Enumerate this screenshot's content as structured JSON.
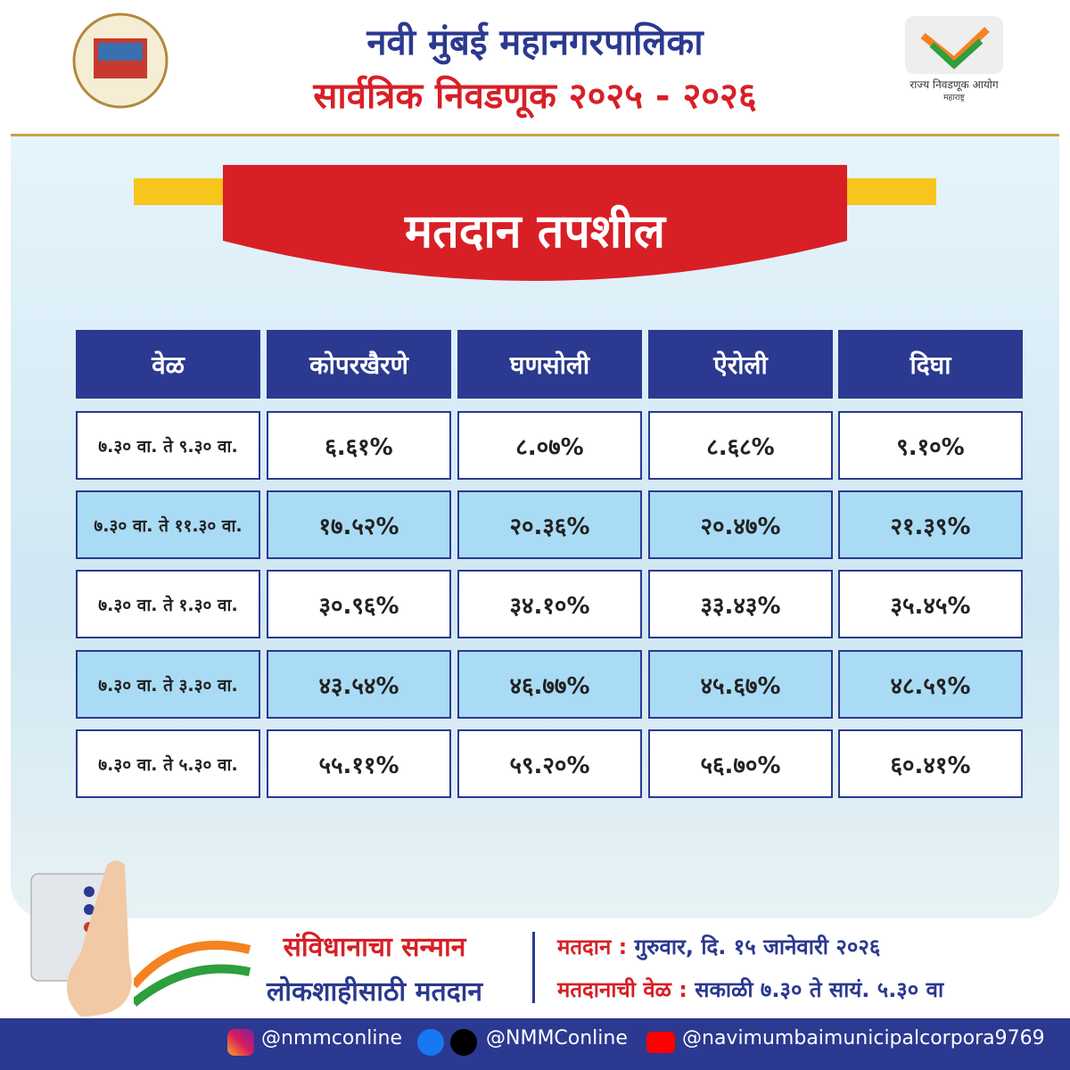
{
  "header": {
    "title": "नवी मुंबई महानगरपालिका",
    "subtitle": "सार्वत्रिक निवडणूक २०२५ - २०२६",
    "commission_name": "राज्य निवडणूक आयोग",
    "commission_state": "महाराष्ट्र"
  },
  "banner": "मतदान तपशील",
  "table": {
    "header": [
      "वेळ",
      "कोपरखैरणे",
      "घणसोली",
      "ऐरोली",
      "दिघा"
    ],
    "rows": [
      [
        "७.३० वा. ते ९.३० वा.",
        "६.६१%",
        "८.०७%",
        "८.६८%",
        "९.१०%"
      ],
      [
        "७.३० वा. ते ११.३० वा.",
        "१७.५२%",
        "२०.३६%",
        "२०.४७%",
        "२१.३९%"
      ],
      [
        "७.३० वा. ते १.३० वा.",
        "३०.९६%",
        "३४.१०%",
        "३३.४३%",
        "३५.४५%"
      ],
      [
        "७.३० वा. ते ३.३० वा.",
        "४३.५४%",
        "४६.७७%",
        "४५.६७%",
        "४८.५९%"
      ],
      [
        "७.३० वा. ते ५.३० वा.",
        "५५.११%",
        "५९.२०%",
        "५६.७०%",
        "६०.४१%"
      ]
    ]
  },
  "footer": {
    "slogan_1": "संविधानाचा सन्मान",
    "slogan_2": "लोकशाहीसाठी मतदान",
    "date_label": "मतदान :",
    "date_value": "गुरुवार, दि. १५ जानेवारी २०२६",
    "time_label": "मतदानाची वेळ :",
    "time_value": "सकाळी ७.३० ते सायं. ५.३० वा"
  },
  "social": {
    "instagram": "@nmmconline",
    "facebook_x": "@NMMConline",
    "youtube": "@navimumbaimunicipalcorpora9769"
  }
}
